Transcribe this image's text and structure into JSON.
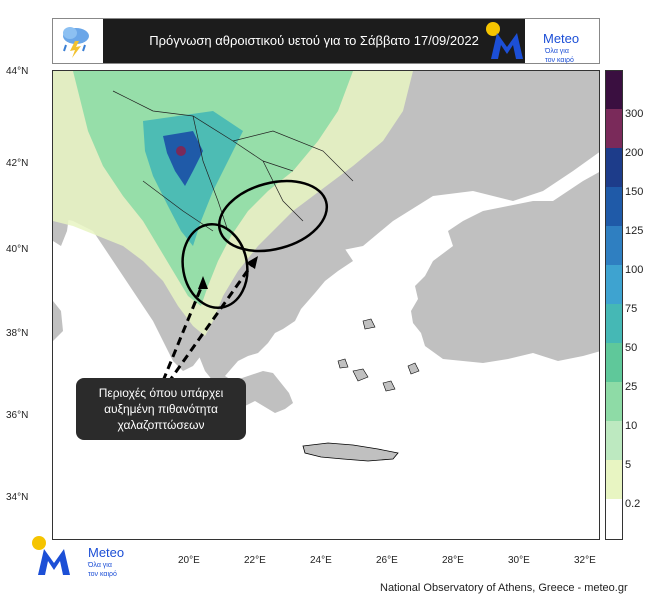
{
  "header": {
    "title": "Πρόγνωση αθροιστικού υετού για το Σάββατο 17/09/2022",
    "brand_name": "Meteo",
    "brand_tagline_1": "Όλα για",
    "brand_tagline_2": "τον καιρό"
  },
  "map": {
    "lat_labels": [
      "44°N",
      "42°N",
      "40°N",
      "38°N",
      "36°N",
      "34°N"
    ],
    "lon_labels": [
      "20°E",
      "22°E",
      "24°E",
      "26°E",
      "28°E",
      "30°E",
      "32°E"
    ],
    "colors": {
      "sea": "#ffffff",
      "land": "#c0c0c0",
      "ring": "#000000",
      "arrow": "#000000"
    }
  },
  "legend": {
    "levels": [
      {
        "label": "300",
        "color": "#7a2a5a"
      },
      {
        "label": "200",
        "color": "#1d3c8a"
      },
      {
        "label": "150",
        "color": "#1f5aa8"
      },
      {
        "label": "125",
        "color": "#2f7fc1"
      },
      {
        "label": "100",
        "color": "#3ea3d0"
      },
      {
        "label": "75",
        "color": "#45b8b5"
      },
      {
        "label": "50",
        "color": "#5fc89a"
      },
      {
        "label": "25",
        "color": "#8edba6"
      },
      {
        "label": "10",
        "color": "#bde9c0"
      },
      {
        "label": "5",
        "color": "#e8f5c2"
      },
      {
        "label": "0.2",
        "color": "#ffffff"
      }
    ],
    "top_color": "#3a0f40"
  },
  "callout": {
    "line1": "Περιοχές όπου υπάρχει",
    "line2": "αυξημένη πιθανότητα",
    "line3": "χαλαζοπτώσεων"
  },
  "bottom_logo": {
    "name": "Meteo",
    "tagline_1": "Όλα για",
    "tagline_2": "τον καιρό"
  },
  "footer": {
    "credit": "National Observatory of Athens, Greece - meteo.gr"
  }
}
